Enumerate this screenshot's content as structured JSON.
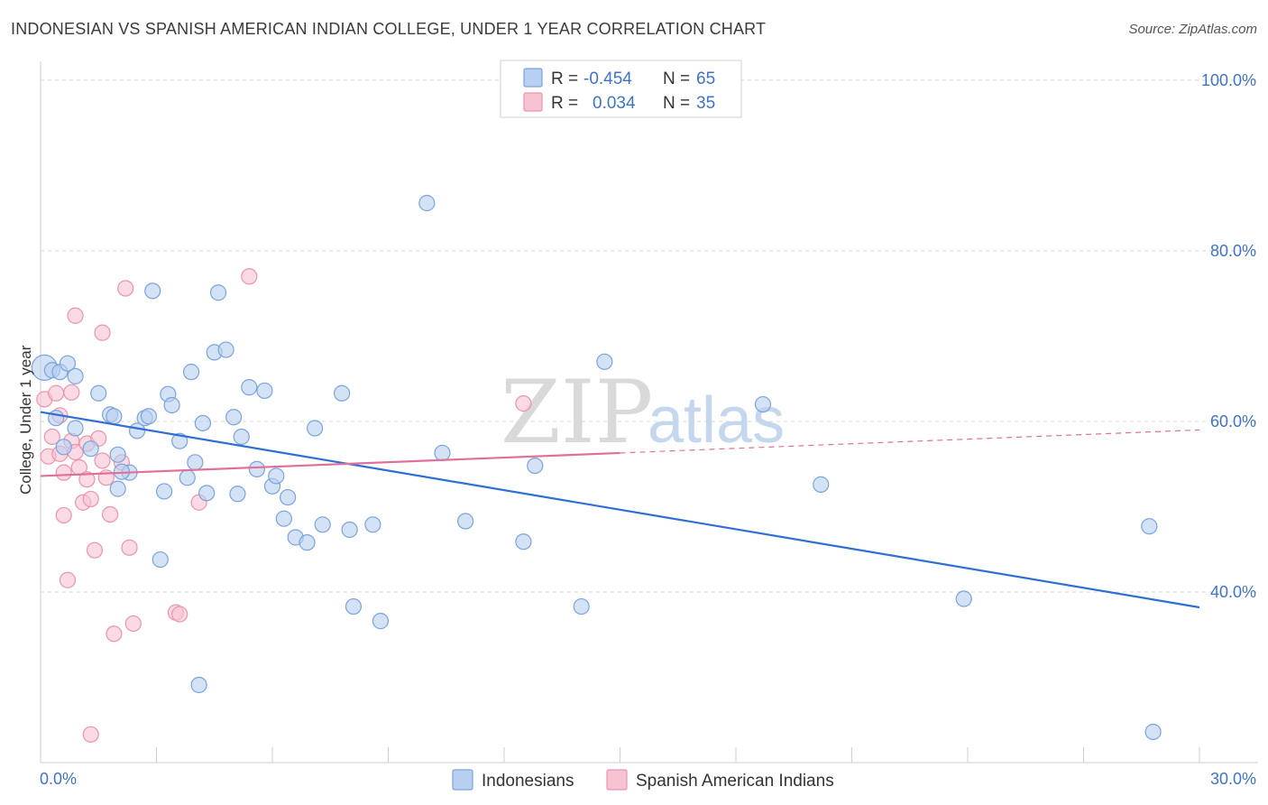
{
  "title": "INDONESIAN VS SPANISH AMERICAN INDIAN COLLEGE, UNDER 1 YEAR CORRELATION CHART",
  "source": "Source: ZipAtlas.com",
  "watermark": {
    "zip": "ZIP",
    "atlas": "atlas"
  },
  "colors": {
    "blue_fill": "#b7cff0",
    "blue_stroke": "#7aa3dc",
    "blue_line": "#2f6fd1",
    "pink_fill": "#f7c3d2",
    "pink_stroke": "#ec93ae",
    "pink_line": "#e0709a",
    "grid": "#d8d8d8",
    "axis_text": "#3f73c9"
  },
  "legend": {
    "row1": {
      "r_label": "R =",
      "r_value": "-0.454",
      "n_label": "N =",
      "n_value": "65"
    },
    "row2": {
      "r_label": "R =",
      "r_value": "0.034",
      "n_label": "N =",
      "n_value": "35"
    }
  },
  "bottom_legend": [
    "Indonesians",
    "Spanish American Indians"
  ],
  "chart_data": {
    "type": "scatter",
    "title": "INDONESIAN VS SPANISH AMERICAN INDIAN COLLEGE, UNDER 1 YEAR CORRELATION CHART",
    "xlabel": "",
    "ylabel": "College, Under 1 year",
    "xlim": [
      0,
      30
    ],
    "ylim": [
      20,
      102
    ],
    "x_tick_labels": [
      "0.0%",
      "30.0%"
    ],
    "y_ticks": [
      40,
      60,
      80,
      100
    ],
    "y_tick_labels": [
      "40.0%",
      "60.0%",
      "80.0%",
      "100.0%"
    ],
    "grid": true,
    "series": [
      {
        "name": "Indonesians",
        "r": -0.454,
        "n": 65,
        "trend": {
          "x0": 0,
          "y0": 61.1,
          "x1": 30,
          "y1": 38.2,
          "solid_until": 30
        },
        "points": [
          [
            0.1,
            66.3
          ],
          [
            0.3,
            66.0
          ],
          [
            0.5,
            65.8
          ],
          [
            0.7,
            66.8
          ],
          [
            0.4,
            60.4
          ],
          [
            0.9,
            65.3
          ],
          [
            1.5,
            63.3
          ],
          [
            1.8,
            60.8
          ],
          [
            0.9,
            59.2
          ],
          [
            1.3,
            56.8
          ],
          [
            2.0,
            56.1
          ],
          [
            2.3,
            54.0
          ],
          [
            2.0,
            52.1
          ],
          [
            2.5,
            58.9
          ],
          [
            2.7,
            60.4
          ],
          [
            2.8,
            60.6
          ],
          [
            2.9,
            75.3
          ],
          [
            3.1,
            43.8
          ],
          [
            3.2,
            51.8
          ],
          [
            3.3,
            63.2
          ],
          [
            3.4,
            61.9
          ],
          [
            3.6,
            57.7
          ],
          [
            3.8,
            53.4
          ],
          [
            3.9,
            65.8
          ],
          [
            4.2,
            59.8
          ],
          [
            4.3,
            51.6
          ],
          [
            4.5,
            68.1
          ],
          [
            4.6,
            75.1
          ],
          [
            4.8,
            68.4
          ],
          [
            5.0,
            60.5
          ],
          [
            5.1,
            51.5
          ],
          [
            5.2,
            58.2
          ],
          [
            5.4,
            64.0
          ],
          [
            5.6,
            54.4
          ],
          [
            5.8,
            63.6
          ],
          [
            6.0,
            52.4
          ],
          [
            6.1,
            53.6
          ],
          [
            6.3,
            48.6
          ],
          [
            6.4,
            51.1
          ],
          [
            6.6,
            46.4
          ],
          [
            6.9,
            45.8
          ],
          [
            7.1,
            59.2
          ],
          [
            7.3,
            47.9
          ],
          [
            7.8,
            63.3
          ],
          [
            8.0,
            47.3
          ],
          [
            8.1,
            38.3
          ],
          [
            8.6,
            47.9
          ],
          [
            8.8,
            36.6
          ],
          [
            10.0,
            85.6
          ],
          [
            10.4,
            56.3
          ],
          [
            11.0,
            48.3
          ],
          [
            12.5,
            45.9
          ],
          [
            12.8,
            54.8
          ],
          [
            14.0,
            38.3
          ],
          [
            14.6,
            67.0
          ],
          [
            18.7,
            62.0
          ],
          [
            20.2,
            52.6
          ],
          [
            23.9,
            39.2
          ],
          [
            28.7,
            47.7
          ],
          [
            28.8,
            23.6
          ],
          [
            4.0,
            55.2
          ],
          [
            1.9,
            60.6
          ],
          [
            0.6,
            57.0
          ],
          [
            2.1,
            54.1
          ],
          [
            4.1,
            29.1
          ]
        ]
      },
      {
        "name": "Spanish American Indians",
        "r": 0.034,
        "n": 35,
        "trend": {
          "x0": 0,
          "y0": 53.6,
          "x1": 30,
          "y1": 59.0,
          "solid_until": 15
        },
        "points": [
          [
            0.1,
            62.6
          ],
          [
            0.2,
            55.9
          ],
          [
            0.3,
            58.2
          ],
          [
            0.4,
            63.3
          ],
          [
            0.5,
            60.7
          ],
          [
            0.5,
            56.2
          ],
          [
            0.6,
            54.0
          ],
          [
            0.6,
            49.0
          ],
          [
            0.7,
            41.4
          ],
          [
            0.8,
            63.4
          ],
          [
            0.8,
            57.7
          ],
          [
            0.9,
            72.4
          ],
          [
            0.9,
            56.4
          ],
          [
            1.0,
            54.6
          ],
          [
            1.1,
            50.5
          ],
          [
            1.2,
            57.4
          ],
          [
            1.2,
            53.2
          ],
          [
            1.3,
            50.9
          ],
          [
            1.4,
            44.9
          ],
          [
            1.5,
            58.0
          ],
          [
            1.6,
            55.4
          ],
          [
            1.7,
            53.4
          ],
          [
            1.8,
            49.1
          ],
          [
            1.9,
            35.1
          ],
          [
            2.1,
            55.2
          ],
          [
            2.2,
            75.6
          ],
          [
            2.3,
            45.2
          ],
          [
            2.4,
            36.3
          ],
          [
            3.5,
            37.6
          ],
          [
            3.6,
            37.4
          ],
          [
            4.1,
            50.5
          ],
          [
            5.4,
            77.0
          ],
          [
            12.5,
            62.1
          ],
          [
            1.3,
            23.3
          ],
          [
            1.6,
            70.4
          ]
        ]
      }
    ]
  }
}
